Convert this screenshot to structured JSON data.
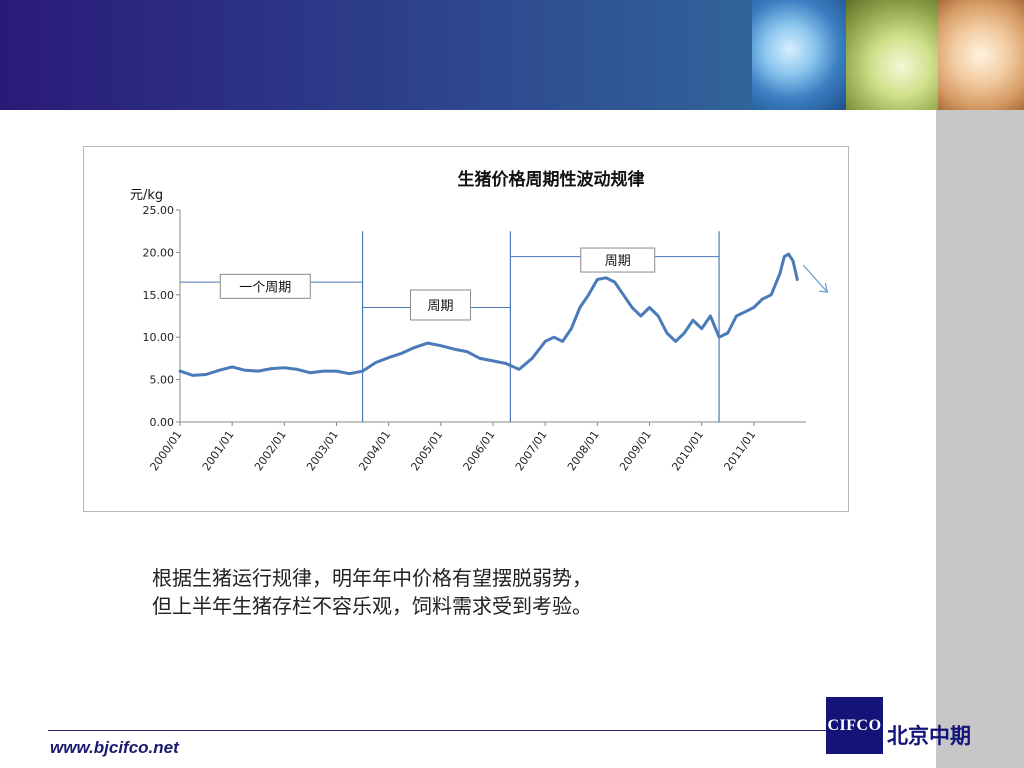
{
  "footer": {
    "url": "www.bjcifco.net"
  },
  "logo": {
    "mark": "CIFCO",
    "name": "北京中期"
  },
  "body_text": {
    "line1": "根据生猪运行规律，明年年中价格有望摆脱弱势，",
    "line2": "但上半年生猪存栏不容乐观，饲料需求受到考验。"
  },
  "chart_data": {
    "type": "line",
    "title": "生猪价格周期性波动规律",
    "ylabel": "元/kg",
    "ylim": [
      0,
      25
    ],
    "yticks": [
      "0.00",
      "5.00",
      "10.00",
      "15.00",
      "20.00",
      "25.00"
    ],
    "xticks": [
      "2000/01",
      "2001/01",
      "2002/01",
      "2003/01",
      "2004/01",
      "2005/01",
      "2006/01",
      "2007/01",
      "2008/01",
      "2009/01",
      "2010/01",
      "2011/01"
    ],
    "series_color": "#4a7ab8",
    "x": [
      "2000/01",
      "2000/04",
      "2000/07",
      "2000/10",
      "2001/01",
      "2001/04",
      "2001/07",
      "2001/10",
      "2002/01",
      "2002/04",
      "2002/07",
      "2002/10",
      "2003/01",
      "2003/04",
      "2003/07",
      "2003/10",
      "2004/01",
      "2004/04",
      "2004/07",
      "2004/10",
      "2005/01",
      "2005/04",
      "2005/07",
      "2005/10",
      "2006/01",
      "2006/04",
      "2006/07",
      "2006/10",
      "2007/01",
      "2007/03",
      "2007/05",
      "2007/07",
      "2007/09",
      "2007/11",
      "2008/01",
      "2008/03",
      "2008/05",
      "2008/07",
      "2008/09",
      "2008/11",
      "2009/01",
      "2009/03",
      "2009/05",
      "2009/07",
      "2009/09",
      "2009/11",
      "2010/01",
      "2010/03",
      "2010/05",
      "2010/07",
      "2010/09",
      "2010/11",
      "2011/01",
      "2011/03",
      "2011/05",
      "2011/07",
      "2011/08",
      "2011/09",
      "2011/10",
      "2011/11"
    ],
    "values": [
      6.0,
      5.5,
      5.6,
      6.1,
      6.5,
      6.1,
      6.0,
      6.3,
      6.4,
      6.2,
      5.8,
      6.0,
      6.0,
      5.7,
      6.0,
      7.0,
      7.6,
      8.1,
      8.8,
      9.3,
      9.0,
      8.6,
      8.3,
      7.5,
      7.2,
      6.9,
      6.2,
      7.5,
      9.5,
      10.0,
      9.5,
      11.0,
      13.5,
      15.0,
      16.8,
      17.0,
      16.5,
      15.0,
      13.5,
      12.5,
      13.5,
      12.5,
      10.5,
      9.5,
      10.5,
      12.0,
      11.0,
      12.5,
      10.0,
      10.5,
      12.5,
      13.0,
      13.5,
      14.5,
      15.0,
      17.5,
      19.5,
      19.8,
      19.0,
      16.8
    ],
    "cycle_lines": [
      "2003/07",
      "2006/05",
      "2010/05"
    ],
    "annotations": [
      "一个周期",
      "周期",
      "周期"
    ]
  }
}
